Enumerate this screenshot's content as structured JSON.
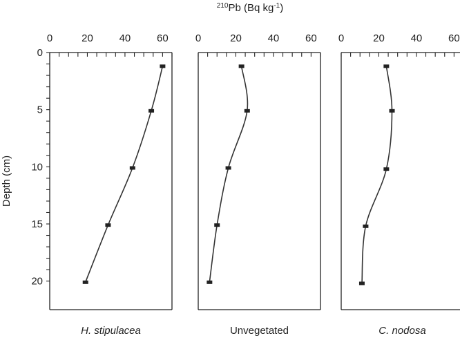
{
  "chart_data": {
    "type": "line",
    "title": "210Pb (Bq kg-1)",
    "title_parts": {
      "superscript": "210",
      "main": "Pb (Bq kg",
      "exponent": "-1",
      "close": ")"
    },
    "ylabel": "Depth (cm)",
    "xlim": [
      0,
      65
    ],
    "ylim": [
      0,
      22.5
    ],
    "y_inverted": true,
    "x_ticks": [
      "0",
      "20",
      "40",
      "60"
    ],
    "y_ticks": [
      "0",
      "5",
      "10",
      "15",
      "20"
    ],
    "x_tick_values": [
      0,
      20,
      40,
      60
    ],
    "y_tick_values": [
      0,
      5,
      10,
      15,
      20
    ],
    "grid": false,
    "panels": [
      {
        "name": "H. stipulacea",
        "italic": true,
        "points": [
          {
            "x": 60,
            "y": 1.2
          },
          {
            "x": 54,
            "y": 5.1
          },
          {
            "x": 44,
            "y": 10.1
          },
          {
            "x": 31,
            "y": 15.1
          },
          {
            "x": 19,
            "y": 20.1
          }
        ]
      },
      {
        "name": "Unvegetated",
        "italic": false,
        "points": [
          {
            "x": 23,
            "y": 1.2
          },
          {
            "x": 26,
            "y": 5.1
          },
          {
            "x": 16,
            "y": 10.1
          },
          {
            "x": 10,
            "y": 15.1
          },
          {
            "x": 6,
            "y": 20.1
          }
        ]
      },
      {
        "name": "C. nodosa",
        "italic": true,
        "points": [
          {
            "x": 24,
            "y": 1.2
          },
          {
            "x": 27,
            "y": 5.1
          },
          {
            "x": 24,
            "y": 10.2
          },
          {
            "x": 13,
            "y": 15.2
          },
          {
            "x": 11,
            "y": 20.2
          }
        ]
      }
    ]
  }
}
